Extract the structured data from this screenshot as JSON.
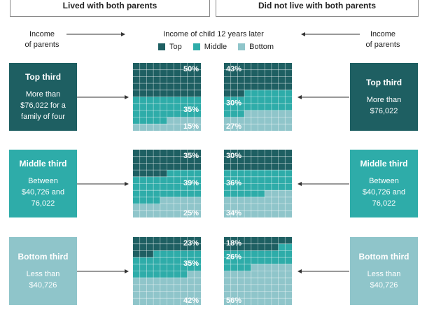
{
  "headers": {
    "left": "Lived with both parents",
    "right": "Did not live with both parents"
  },
  "labels": {
    "income_of_parents_left": [
      "Income",
      "of parents"
    ],
    "income_of_parents_right": [
      "Income",
      "of parents"
    ],
    "center_title": "Income of child 12 years later"
  },
  "legend": [
    {
      "label": "Top",
      "color": "#1e5f62"
    },
    {
      "label": "Middle",
      "color": "#2eaca9"
    },
    {
      "label": "Bottom",
      "color": "#8fc5ca"
    }
  ],
  "colors": {
    "top": "#1e5f62",
    "middle": "#2eaca9",
    "bottom": "#8fc5ca",
    "grid_line": "#ffffff"
  },
  "rows": [
    {
      "key": "top",
      "title": "Top third",
      "desc_left": [
        "More than",
        "$76,022 for a",
        "family of four"
      ],
      "desc_right": [
        "More than",
        "$76,022"
      ],
      "box_color": "#1e5f62"
    },
    {
      "key": "middle",
      "title": "Middle third",
      "desc_left": [
        "Between",
        "$40,726 and",
        "76,022"
      ],
      "desc_right": [
        "Between",
        "$40,726 and",
        "76,022"
      ],
      "box_color": "#2eaca9"
    },
    {
      "key": "bottom",
      "title": "Bottom third",
      "desc_left": [
        "Less than",
        "$40,726"
      ],
      "desc_right": [
        "Less than",
        "$40,726"
      ],
      "box_color": "#8fc5ca"
    }
  ],
  "chart_data": {
    "type": "waffle",
    "categories": [
      "Top",
      "Middle",
      "Bottom"
    ],
    "panels": [
      {
        "parents": "Lived with both parents",
        "parent_income": "Top third",
        "values": {
          "Top": 50,
          "Middle": 35,
          "Bottom": 15
        },
        "labels": [
          "50%",
          "35%",
          "15%"
        ]
      },
      {
        "parents": "Did not live with both parents",
        "parent_income": "Top third",
        "values": {
          "Top": 43,
          "Middle": 30,
          "Bottom": 27
        },
        "labels": [
          "43%",
          "30%",
          "27%"
        ]
      },
      {
        "parents": "Lived with both parents",
        "parent_income": "Middle third",
        "values": {
          "Top": 35,
          "Middle": 39,
          "Bottom": 25
        },
        "labels": [
          "35%",
          "39%",
          "25%"
        ]
      },
      {
        "parents": "Did not live with both parents",
        "parent_income": "Middle third",
        "values": {
          "Top": 30,
          "Middle": 36,
          "Bottom": 34
        },
        "labels": [
          "30%",
          "36%",
          "34%"
        ]
      },
      {
        "parents": "Lived with both parents",
        "parent_income": "Bottom third",
        "values": {
          "Top": 23,
          "Middle": 35,
          "Bottom": 42
        },
        "labels": [
          "23%",
          "35%",
          "42%"
        ]
      },
      {
        "parents": "Did not live with both parents",
        "parent_income": "Bottom third",
        "values": {
          "Top": 18,
          "Middle": 26,
          "Bottom": 56
        },
        "labels": [
          "18%",
          "26%",
          "56%"
        ]
      }
    ]
  }
}
